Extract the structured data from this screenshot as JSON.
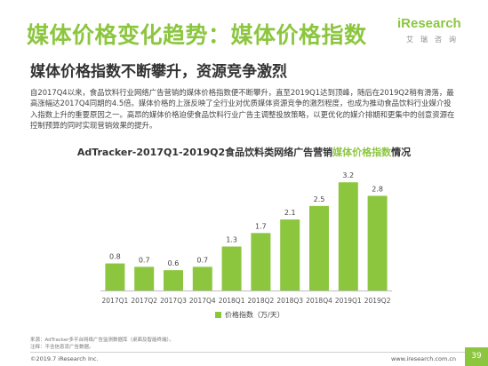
{
  "header": {
    "title": "媒体价格变化趋势：媒体价格指数",
    "logo_main": "iResearch",
    "logo_sub": "艾瑞咨询",
    "subtitle": "媒体价格指数不断攀升，资源竞争激烈",
    "paragraph": "自2017Q4以来，食品饮料行业网络广告营销的媒体价格指数便不断攀升，直至2019Q1达到顶峰，随后在2019Q2稍有滑落，最高涨幅达2017Q4同期的4.5倍。媒体价格的上涨反映了全行业对优质媒体资源竞争的激烈程度，也成为推动食品饮料行业媒介投入指数上升的重要原因之一。高昂的媒体价格迫使食品饮料行业广告主调整投放策略，以更优化的媒介排期和更集中的创意资源在控制预算的同时实现营销效果的提升。"
  },
  "chart_heading": {
    "prefix": "AdTracker-2017Q1-2019Q2食品饮料类网络广告营销",
    "highlight": "媒体价格指数",
    "suffix": "情况"
  },
  "chart_data": {
    "type": "bar",
    "categories": [
      "2017Q1",
      "2017Q2",
      "2017Q3",
      "2017Q4",
      "2018Q1",
      "2018Q2",
      "2018Q3",
      "2018Q4",
      "2019Q1",
      "2019Q2"
    ],
    "series": [
      {
        "name": "价格指数（万/天）",
        "values": [
          0.8,
          0.7,
          0.6,
          0.7,
          1.3,
          1.7,
          2.1,
          2.5,
          3.2,
          2.8
        ]
      }
    ],
    "ylim": [
      0,
      3.6
    ],
    "grid": false,
    "legend": "bottom",
    "bar_color": "#8cc63f"
  },
  "footer": {
    "source": "来源：AdTracker多平台网络广告监测数据库（桌面及智能终端）。",
    "note": "注释：不含信息流广告数据。",
    "copyright": "©2019.7 iResearch Inc.",
    "website": "www.iresearch.com.cn",
    "page": "39"
  }
}
